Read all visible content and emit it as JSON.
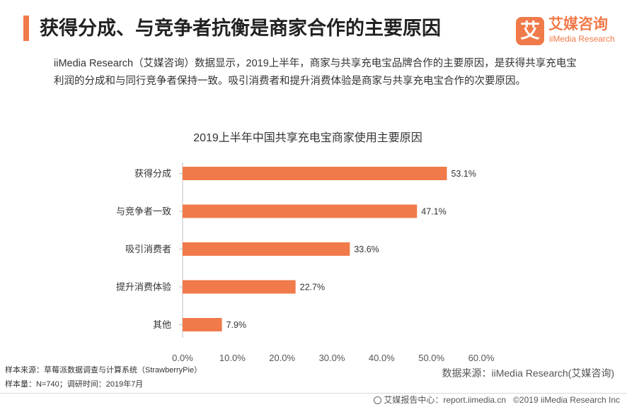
{
  "header": {
    "title": "获得分成、与竞争者抗衡是商家合作的主要原因",
    "accent_color": "#f07a4a"
  },
  "logo": {
    "mark": "艾",
    "name_cn": "艾媒咨询",
    "name_en": "iiMedia Research",
    "color": "#f07a4a"
  },
  "intro": {
    "line1": "iiMedia Research（艾媒咨询）数据显示，2019上半年，商家与共享充电宝品牌合作的主要原因，是获得共享充电宝",
    "line2": "利润的分成和与同行竞争者保持一致。吸引消费者和提升消费体验是商家与共享充电宝合作的次要原因。"
  },
  "chart_data": {
    "type": "bar",
    "orientation": "horizontal",
    "title": "2019上半年中国共享充电宝商家使用主要原因",
    "categories": [
      "获得分成",
      "与竞争者一致",
      "吸引消费者",
      "提升消费体验",
      "其他"
    ],
    "values": [
      53.1,
      47.1,
      33.6,
      22.7,
      7.9
    ],
    "value_labels": [
      "53.1%",
      "47.1%",
      "33.6%",
      "22.7%",
      "7.9%"
    ],
    "x_ticks": [
      "0.0%",
      "10.0%",
      "20.0%",
      "30.0%",
      "40.0%",
      "50.0%",
      "60.0%"
    ],
    "xlim": [
      0,
      60
    ],
    "bar_color": "#f07a4a",
    "grid": false,
    "legend": "none"
  },
  "source_left": {
    "line1": "样本来源：草莓派数据调查与计算系统（StrawberryPie）",
    "line2": "样本量：N=740；调研时间：2019年7月"
  },
  "source_right": "数据来源：iiMedia Research(艾媒咨询)",
  "footer": {
    "report_center": "艾媒报告中心：report.iimedia.cn",
    "copyright": "©2019  iiMedia Research Inc"
  }
}
